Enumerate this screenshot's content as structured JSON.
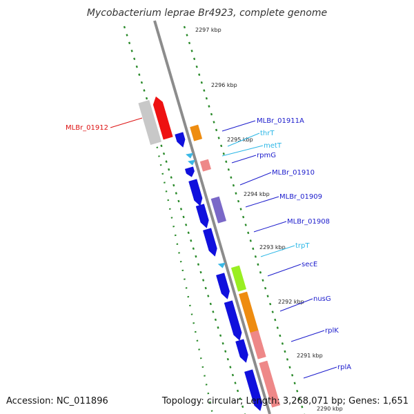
{
  "map": {
    "title": "Mycobacterium leprae Br4923, complete genome",
    "accession": "Accession: NC_011896",
    "summary": "Topology: circular; Length: 3,268,071 bp; Genes: 1,651"
  },
  "colors": {
    "backbone": "#8c8c8c",
    "tick": "#2a8a2a",
    "cds": "#1010dd",
    "trna": "#39b8e6",
    "ortholog_orange": "#ee8c10",
    "ortholog_pink": "#ee8888",
    "ortholog_purple": "#7a68c8",
    "ortholog_green": "#99ee22",
    "highlight_red": "#ee1111",
    "pseudo_gray": "#c8c8c8",
    "label_blue": "#1a1acc",
    "label_cyan": "#29b6e6",
    "label_red": "#dd1111"
  },
  "kbp_ticks": [
    {
      "label": "2297 kbp"
    },
    {
      "label": "2296 kbp"
    },
    {
      "label": "2295 kbp"
    },
    {
      "label": "2294 kbp"
    },
    {
      "label": "2293 kbp"
    },
    {
      "label": "2292 kbp"
    },
    {
      "label": "2291 kbp"
    },
    {
      "label": "2290 kbp"
    }
  ],
  "gene_labels": [
    {
      "label": "MLBr_01911A",
      "color": "blue"
    },
    {
      "label": "thrT",
      "color": "cyan"
    },
    {
      "label": "metT",
      "color": "cyan"
    },
    {
      "label": "rpmG",
      "color": "blue"
    },
    {
      "label": "MLBr_01910",
      "color": "blue"
    },
    {
      "label": "MLBr_01909",
      "color": "blue"
    },
    {
      "label": "MLBr_01908",
      "color": "blue"
    },
    {
      "label": "trpT",
      "color": "cyan"
    },
    {
      "label": "secE",
      "color": "blue"
    },
    {
      "label": "nusG",
      "color": "blue"
    },
    {
      "label": "rplK",
      "color": "blue"
    },
    {
      "label": "rplA",
      "color": "blue"
    },
    {
      "label": "MLBr_01912",
      "color": "red"
    }
  ]
}
